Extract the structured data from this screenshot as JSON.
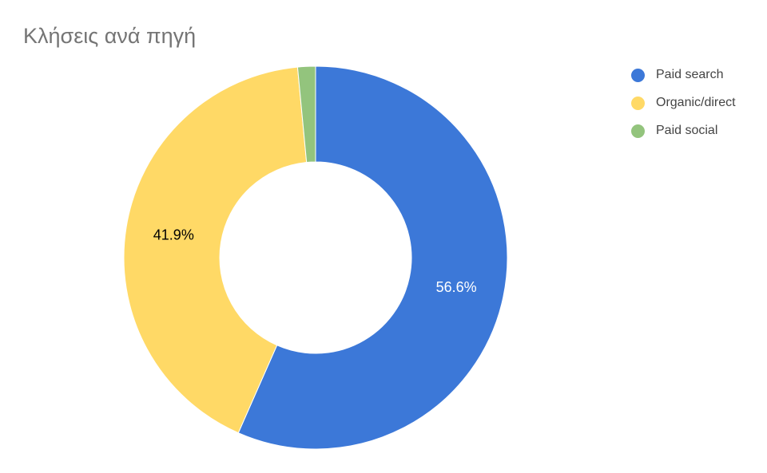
{
  "chart_data": {
    "type": "pie",
    "title": "Κλήσεις ανά πηγή",
    "donut": true,
    "legend_position": "right",
    "slices": [
      {
        "label": "Paid search",
        "value": 56.6,
        "value_label": "56.6%",
        "color": "#3c78d8",
        "label_color": "#ffffff"
      },
      {
        "label": "Organic/direct",
        "value": 41.9,
        "value_label": "41.9%",
        "color": "#ffd966",
        "label_color": "#000000"
      },
      {
        "label": "Paid social",
        "value": 1.5,
        "value_label": "",
        "color": "#93c47d",
        "label_color": "#000000"
      }
    ]
  }
}
